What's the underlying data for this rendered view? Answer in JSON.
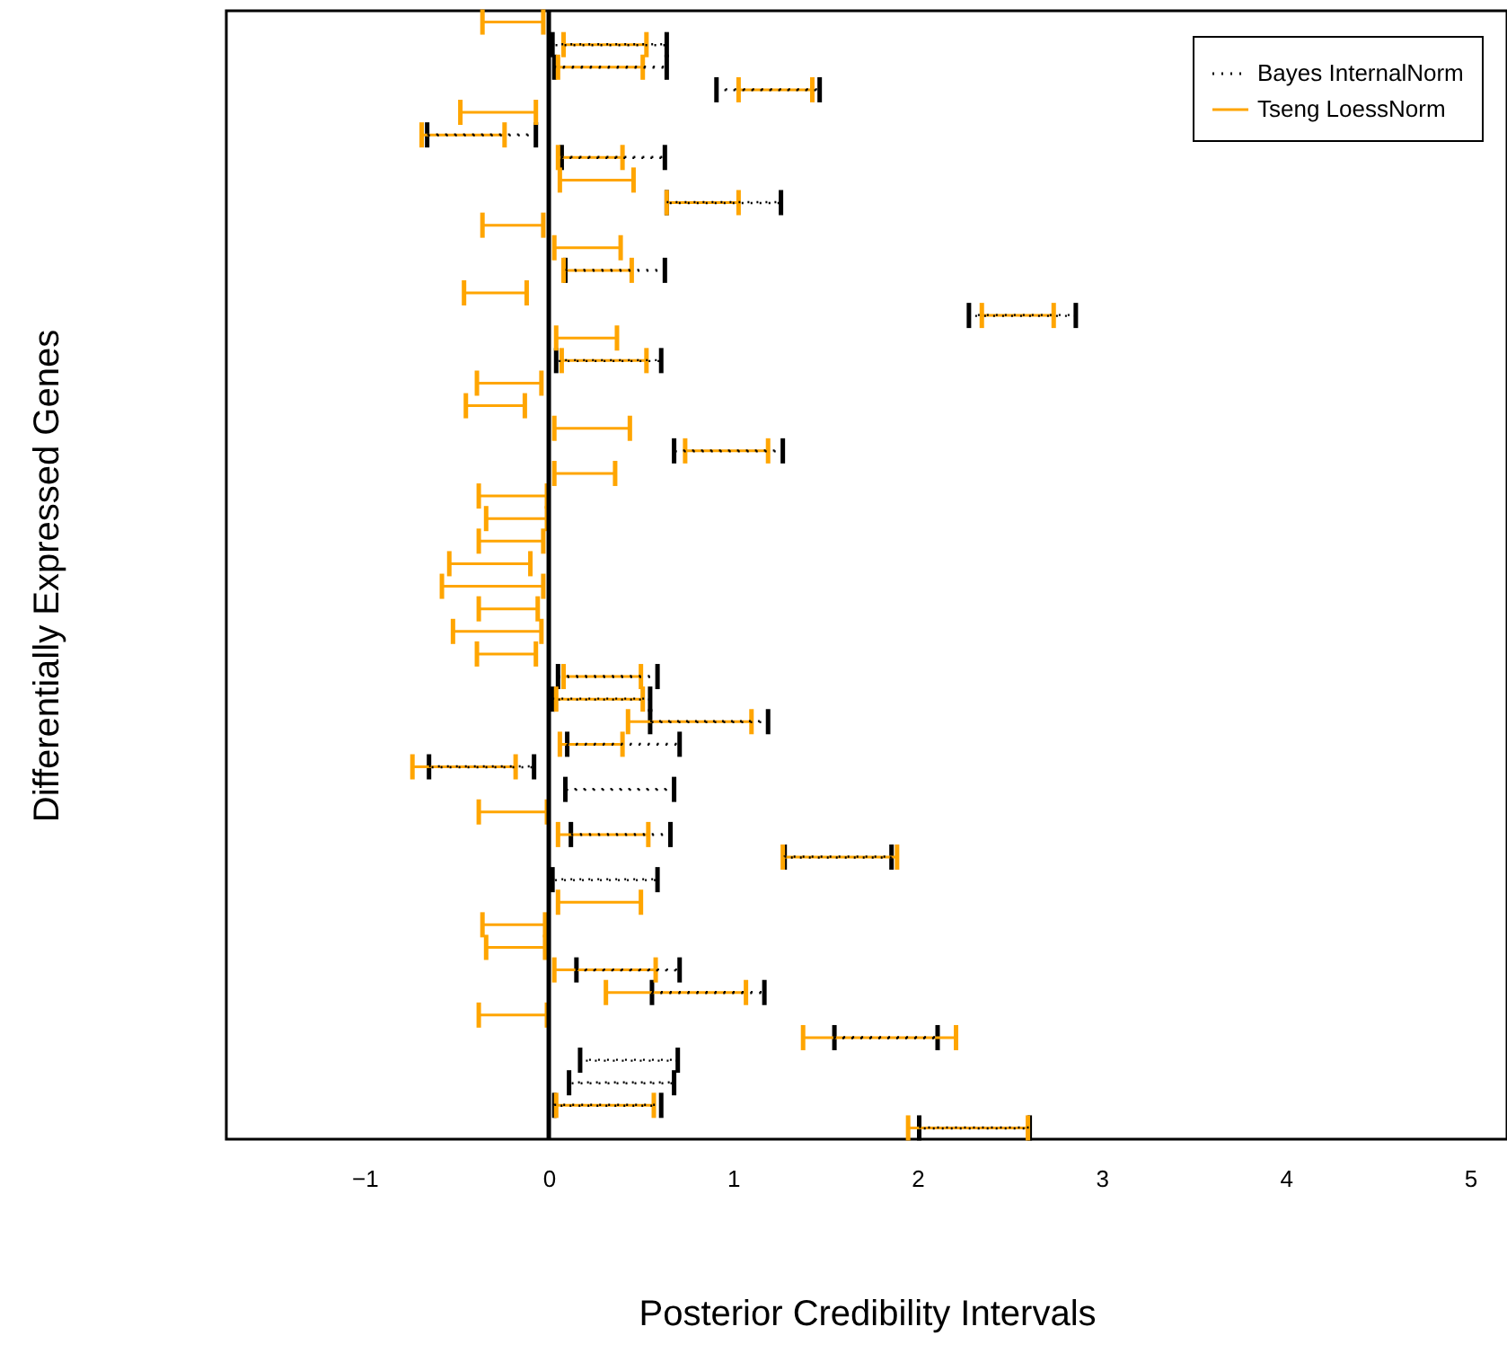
{
  "chart_data": {
    "type": "bar",
    "orientation": "horizontal",
    "xlabel": "Posterior Credibility Intervals",
    "ylabel": "Differentially Expressed Genes",
    "categories": [
      null,
      null,
      null,
      null,
      null,
      null,
      null,
      null,
      null,
      null,
      null,
      null,
      null,
      null,
      null,
      null,
      null,
      null,
      null,
      null,
      null,
      null,
      null,
      null,
      null,
      null,
      null,
      null,
      null,
      null,
      null,
      null,
      null,
      null,
      null,
      null,
      null,
      null,
      null,
      null,
      null,
      null,
      null,
      null,
      null,
      null,
      null,
      null,
      null,
      null
    ],
    "xlim": [
      -1.75,
      5.2
    ],
    "xticks": [
      {
        "value": -1,
        "label": "−1"
      },
      0,
      1,
      2,
      3,
      4,
      5
    ],
    "tick_labels": "x",
    "grid": false,
    "legend": "top right",
    "ref_lines": [
      {
        "axis": "x",
        "value": 0
      }
    ],
    "series": [
      {
        "name": "Bayes InternalNorm",
        "color": "#000000",
        "line_style": "dotted",
        "base": [
          null,
          0.02,
          0.03,
          0.91,
          null,
          -0.66,
          0.07,
          null,
          0.64,
          null,
          null,
          0.09,
          null,
          2.28,
          null,
          0.04,
          null,
          null,
          null,
          0.68,
          null,
          null,
          null,
          null,
          null,
          null,
          null,
          null,
          null,
          0.05,
          0.02,
          0.55,
          0.1,
          -0.65,
          0.09,
          null,
          0.12,
          1.28,
          0.02,
          null,
          null,
          null,
          0.15,
          0.56,
          null,
          1.55,
          0.17,
          0.11,
          0.03,
          2.01
        ],
        "values": [
          null,
          0.62,
          0.61,
          0.56,
          null,
          0.59,
          0.56,
          null,
          0.62,
          null,
          null,
          0.54,
          null,
          0.58,
          null,
          0.57,
          null,
          null,
          null,
          0.59,
          null,
          null,
          null,
          null,
          null,
          null,
          null,
          null,
          null,
          0.54,
          0.53,
          0.64,
          0.61,
          0.57,
          0.59,
          null,
          0.54,
          0.58,
          0.57,
          null,
          null,
          null,
          0.56,
          0.61,
          null,
          0.56,
          0.53,
          0.57,
          0.58,
          0.6
        ]
      },
      {
        "name": "Tseng LoessNorm",
        "color": "#ffa500",
        "line_style": "solid",
        "base": [
          -0.36,
          0.08,
          0.05,
          1.03,
          -0.48,
          -0.69,
          0.05,
          0.06,
          0.64,
          -0.36,
          0.03,
          0.08,
          -0.46,
          2.35,
          0.04,
          0.07,
          -0.39,
          -0.45,
          0.03,
          0.74,
          0.03,
          -0.38,
          -0.34,
          -0.38,
          -0.54,
          -0.58,
          -0.38,
          -0.52,
          -0.39,
          0.08,
          0.04,
          0.43,
          0.06,
          -0.74,
          null,
          -0.38,
          0.05,
          1.27,
          null,
          0.05,
          -0.36,
          -0.34,
          0.03,
          0.31,
          -0.38,
          1.38,
          null,
          null,
          0.04,
          1.95
        ],
        "values": [
          0.33,
          0.45,
          0.46,
          0.4,
          0.41,
          0.45,
          0.35,
          0.4,
          0.39,
          0.33,
          0.36,
          0.37,
          0.34,
          0.39,
          0.33,
          0.46,
          0.35,
          0.32,
          0.41,
          0.45,
          0.33,
          0.37,
          0.33,
          0.35,
          0.44,
          0.55,
          0.32,
          0.48,
          0.32,
          0.42,
          0.47,
          0.67,
          0.34,
          0.56,
          null,
          0.37,
          0.49,
          0.62,
          null,
          0.45,
          0.34,
          0.32,
          0.55,
          0.76,
          0.37,
          0.83,
          null,
          null,
          0.53,
          0.65
        ]
      }
    ]
  }
}
